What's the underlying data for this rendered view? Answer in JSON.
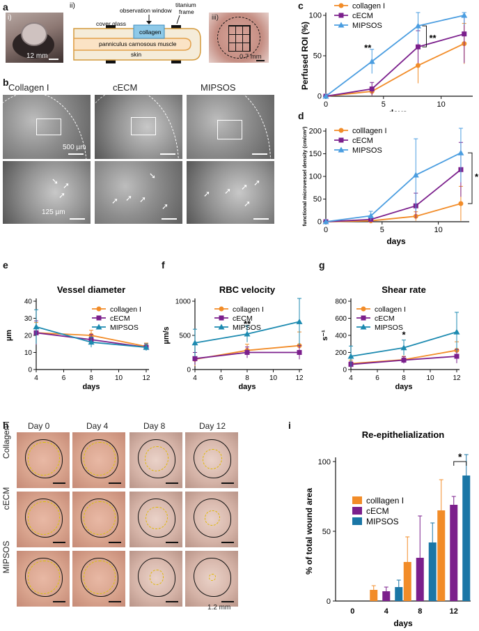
{
  "panels": {
    "a": "a",
    "b": "b",
    "c": "c",
    "d": "d",
    "e": "e",
    "f": "f",
    "g": "g",
    "h": "h",
    "i": "i"
  },
  "panel_a": {
    "sub_i": "i)",
    "sub_ii": "ii)",
    "sub_iii": "iii)",
    "scale_i": "12 mm",
    "scale_iii": "0.7 mm",
    "labels": {
      "cover_glass": "cover glass",
      "observation_window": "observation window",
      "titanium": "titanium",
      "frame": "frame",
      "collagen": "collagen",
      "muscle": "panniculus carnosous muscle",
      "skin": "skin"
    }
  },
  "panel_b": {
    "columns": [
      "Collagen I",
      "cECM",
      "MIPSOS"
    ],
    "scale_top": "500 µm",
    "scale_bottom": "125 µm"
  },
  "panel_h": {
    "days": [
      "Day 0",
      "Day 4",
      "Day 8",
      "Day 12"
    ],
    "rows": [
      "Collagen I",
      "cECM",
      "MIPSOS"
    ],
    "scale": "1.2 mm"
  },
  "colors": {
    "orange": "#f28c28",
    "purple": "#7b1f8c",
    "blue": "#4a9de0",
    "teal": "#1c8ab0",
    "barblue": "#1a76a6"
  },
  "chart_data": [
    {
      "id": "c",
      "type": "line",
      "title": "",
      "xlabel": "days",
      "ylabel": "Perfused ROI (%)",
      "xlim": [
        0,
        12.5
      ],
      "ylim": [
        0,
        100
      ],
      "xticks": [
        0,
        5,
        10
      ],
      "yticks": [
        0,
        50,
        100
      ],
      "annotations": [
        "**",
        "**"
      ],
      "legend": "top-left",
      "series": [
        {
          "name": "collagen I",
          "marker": "circle",
          "x": [
            0,
            4,
            8,
            12
          ],
          "y": [
            0,
            6,
            38,
            65
          ],
          "err": [
            0,
            5,
            22,
            25
          ]
        },
        {
          "name": "cECM",
          "marker": "square",
          "x": [
            0,
            4,
            8,
            12
          ],
          "y": [
            0,
            9,
            61,
            77
          ],
          "err": [
            0,
            8,
            20,
            36
          ]
        },
        {
          "name": "MIPSOS",
          "marker": "triangle",
          "x": [
            0,
            4,
            8,
            12
          ],
          "y": [
            0,
            43,
            87,
            100
          ],
          "err": [
            0,
            15,
            22,
            12
          ]
        }
      ]
    },
    {
      "id": "d",
      "type": "line",
      "title": "",
      "xlabel": "days",
      "ylabel": "functional microvessel density (cm/cm²)",
      "xlim": [
        0,
        12.5
      ],
      "ylim": [
        0,
        200
      ],
      "xticks": [
        0,
        5,
        10
      ],
      "yticks": [
        0,
        50,
        100,
        150,
        200
      ],
      "annotations": [
        "*"
      ],
      "legend": "top-left",
      "series": [
        {
          "name": "colllagen I",
          "marker": "circle",
          "x": [
            0,
            4,
            8,
            12
          ],
          "y": [
            0,
            2,
            12,
            40
          ],
          "err": [
            0,
            2,
            10,
            38
          ]
        },
        {
          "name": "cECM",
          "marker": "square",
          "x": [
            0,
            4,
            8,
            12
          ],
          "y": [
            0,
            5,
            35,
            115
          ],
          "err": [
            0,
            5,
            28,
            60
          ]
        },
        {
          "name": "MIPSOS",
          "marker": "triangle",
          "x": [
            0,
            4,
            8,
            12
          ],
          "y": [
            0,
            13,
            103,
            152
          ],
          "err": [
            0,
            10,
            80,
            65
          ]
        }
      ]
    },
    {
      "id": "e",
      "type": "line",
      "title": "Vessel diameter",
      "xlabel": "days",
      "ylabel": "µm",
      "xlim": [
        4,
        12
      ],
      "ylim": [
        0,
        40
      ],
      "xticks": [
        4,
        6,
        8,
        10,
        12
      ],
      "yticks": [
        0,
        10,
        20,
        30,
        40
      ],
      "annotations": [],
      "legend": "top-right",
      "series": [
        {
          "name": "collagen I",
          "marker": "circle",
          "x": [
            4,
            8,
            12
          ],
          "y": [
            21.5,
            20,
            13.5
          ],
          "err": [
            6,
            3,
            2
          ]
        },
        {
          "name": "cECM",
          "marker": "square",
          "x": [
            4,
            8,
            12
          ],
          "y": [
            21.5,
            17.5,
            13
          ],
          "err": [
            7,
            3,
            2
          ]
        },
        {
          "name": "MIPSOS",
          "marker": "triangle",
          "x": [
            4,
            8,
            12
          ],
          "y": [
            25,
            16,
            13
          ],
          "err": [
            10,
            3,
            2
          ]
        }
      ]
    },
    {
      "id": "f",
      "type": "line",
      "title": "RBC velocity",
      "xlabel": "days",
      "ylabel": "µm/s",
      "xlim": [
        4,
        12
      ],
      "ylim": [
        0,
        1000
      ],
      "xticks": [
        4,
        6,
        8,
        10,
        12
      ],
      "yticks": [
        0,
        500,
        1000
      ],
      "annotations": [
        "**"
      ],
      "legend": "top-right",
      "series": [
        {
          "name": "collagen I",
          "marker": "circle",
          "x": [
            4,
            8,
            12
          ],
          "y": [
            150,
            280,
            350
          ],
          "err": [
            100,
            90,
            200
          ]
        },
        {
          "name": "cECM",
          "marker": "square",
          "x": [
            4,
            8,
            12
          ],
          "y": [
            160,
            250,
            250
          ],
          "err": [
            90,
            80,
            100
          ]
        },
        {
          "name": "MIPSOS",
          "marker": "triangle",
          "x": [
            4,
            8,
            12
          ],
          "y": [
            390,
            520,
            700
          ],
          "err": [
            200,
            120,
            350
          ]
        }
      ]
    },
    {
      "id": "g",
      "type": "line",
      "title": "Shear rate",
      "xlabel": "days",
      "ylabel": "s⁻¹",
      "xlim": [
        4,
        12
      ],
      "ylim": [
        0,
        800
      ],
      "xticks": [
        4,
        6,
        8,
        10,
        12
      ],
      "yticks": [
        0,
        200,
        400,
        600,
        800
      ],
      "annotations": [
        "*"
      ],
      "legend": "top-right",
      "series": [
        {
          "name": "collagen I",
          "marker": "circle",
          "x": [
            4,
            8,
            12
          ],
          "y": [
            70,
            115,
            225
          ],
          "err": [
            40,
            40,
            100
          ]
        },
        {
          "name": "cECM",
          "marker": "square",
          "x": [
            4,
            8,
            12
          ],
          "y": [
            60,
            110,
            155
          ],
          "err": [
            30,
            40,
            80
          ]
        },
        {
          "name": "MIPSOS",
          "marker": "triangle",
          "x": [
            4,
            8,
            12
          ],
          "y": [
            155,
            255,
            440
          ],
          "err": [
            120,
            90,
            230
          ]
        }
      ]
    },
    {
      "id": "i",
      "type": "bar",
      "title": "Re-epithelialization",
      "xlabel": "days",
      "ylabel": "% of total wound area",
      "categories": [
        "0",
        "4",
        "8",
        "12"
      ],
      "ylim": [
        0,
        100
      ],
      "yticks": [
        0,
        50,
        100
      ],
      "annotations": [
        "*"
      ],
      "legend": "top-left",
      "series": [
        {
          "name": "colllagen I",
          "values": [
            0,
            8,
            28,
            65
          ],
          "err": [
            0,
            3,
            18,
            22
          ]
        },
        {
          "name": "cECM",
          "values": [
            0,
            7,
            31,
            69
          ],
          "err": [
            0,
            3,
            30,
            6
          ]
        },
        {
          "name": "MIPSOS",
          "values": [
            0,
            10,
            42,
            90
          ],
          "err": [
            0,
            5,
            14,
            16
          ]
        }
      ]
    }
  ]
}
